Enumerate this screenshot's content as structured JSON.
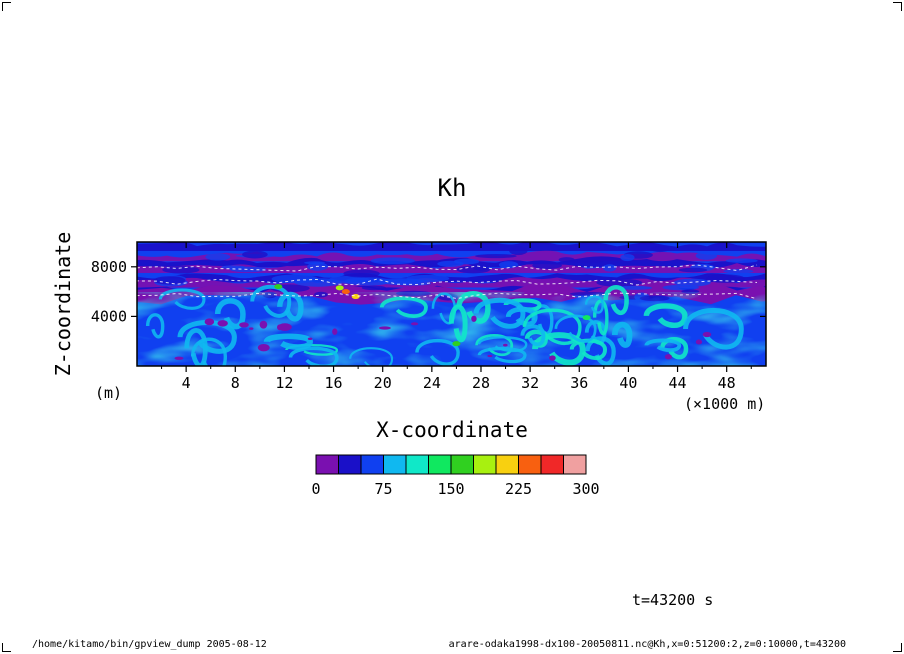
{
  "chart_data": {
    "type": "heatmap",
    "title": "Kh",
    "xlabel": "X-coordinate",
    "ylabel": "Z-coordinate",
    "x_unit": "(×1000 m)",
    "y_unit": "(m)",
    "xlim": [
      0,
      51.2
    ],
    "ylim": [
      0,
      10000
    ],
    "x_ticks": [
      4,
      8,
      12,
      16,
      20,
      24,
      28,
      32,
      36,
      40,
      44,
      48
    ],
    "y_ticks": [
      4000,
      8000
    ],
    "colorbar": {
      "levels": [
        0,
        25,
        50,
        75,
        100,
        125,
        150,
        175,
        200,
        225,
        250,
        275,
        300
      ],
      "tick_labels": [
        "0",
        "75",
        "150",
        "225",
        "300"
      ],
      "tick_values": [
        0,
        75,
        150,
        225,
        300
      ],
      "colors": [
        "#7a10b0",
        "#1a10c8",
        "#1040f0",
        "#10b8f0",
        "#10e8c8",
        "#10e860",
        "#30d020",
        "#a8f010",
        "#f8d010",
        "#f86010",
        "#f02828",
        "#f0a0a0"
      ]
    },
    "annotation": "t=43200 s"
  },
  "footer": {
    "left": "/home/kitamo/bin/gpview_dump  2005-08-12",
    "right": "arare-odaka1998-dx100-20050811.nc@Kh,x=0:51200:2,z=0:10000,t=43200"
  }
}
